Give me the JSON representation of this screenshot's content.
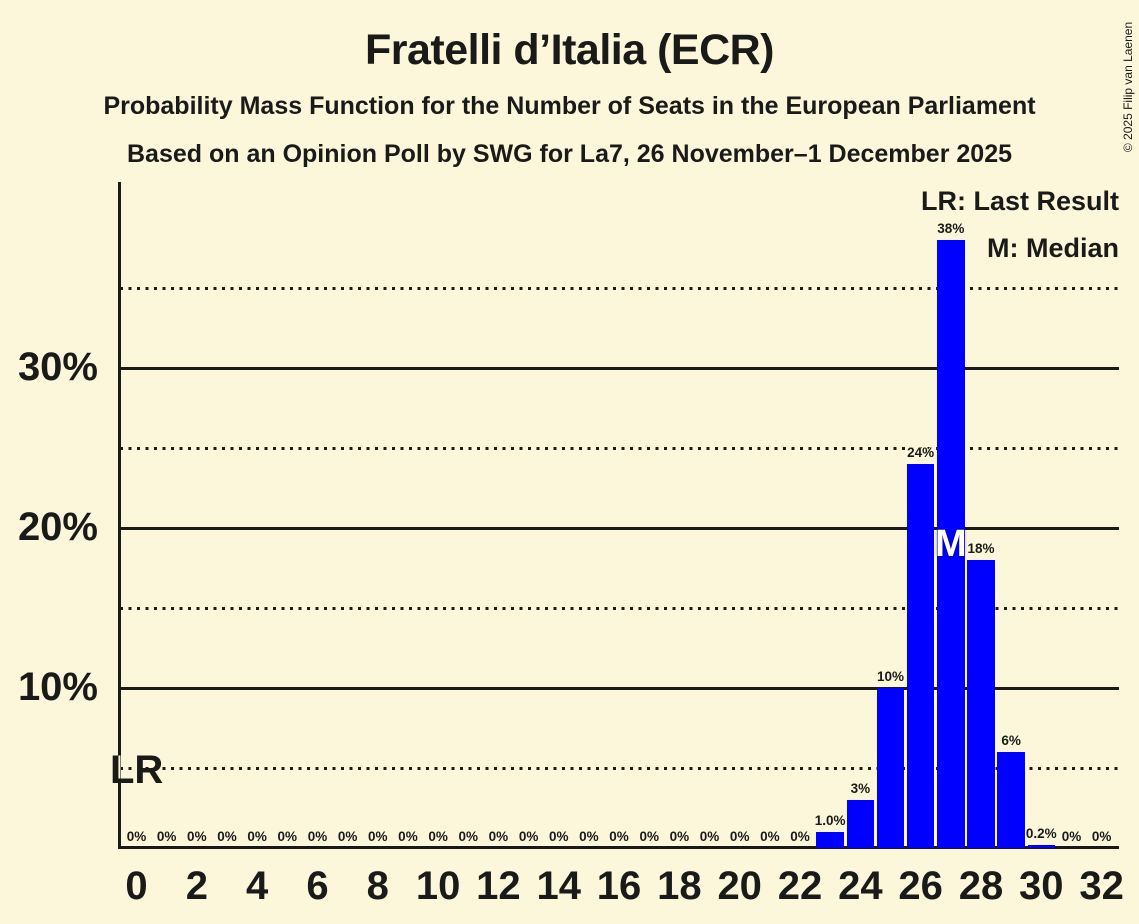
{
  "header": {
    "title": "Fratelli d’Italia (ECR)",
    "subtitle_line1": "Probability Mass Function for the Number of Seats in the European Parliament",
    "subtitle_line2": "Based on an Opinion Poll by SWG for La7, 26 November–1 December 2025"
  },
  "legend": {
    "last_result": "LR: Last Result",
    "median": "M: Median"
  },
  "annotations": {
    "last_result_label": "LR",
    "median_label": "M"
  },
  "copyright": "© 2025 Filip van Laenen",
  "colors": {
    "background": "#FCF7DB",
    "bar": "#0000FF",
    "text": "#1A1A19",
    "median_text": "#FFFFFF"
  },
  "chart_data": {
    "type": "bar",
    "title": "Fratelli d’Italia (ECR)",
    "seats": [
      0,
      1,
      2,
      3,
      4,
      5,
      6,
      7,
      8,
      9,
      10,
      11,
      12,
      13,
      14,
      15,
      16,
      17,
      18,
      19,
      20,
      21,
      22,
      23,
      24,
      25,
      26,
      27,
      28,
      29,
      30,
      31,
      32
    ],
    "values": [
      0,
      0,
      0,
      0,
      0,
      0,
      0,
      0,
      0,
      0,
      0,
      0,
      0,
      0,
      0,
      0,
      0,
      0,
      0,
      0,
      0,
      0,
      0,
      1.0,
      3,
      10,
      24,
      38,
      18,
      6,
      0.2,
      0,
      0
    ],
    "bar_labels": [
      "0%",
      "0%",
      "0%",
      "0%",
      "0%",
      "0%",
      "0%",
      "0%",
      "0%",
      "0%",
      "0%",
      "0%",
      "0%",
      "0%",
      "0%",
      "0%",
      "0%",
      "0%",
      "0%",
      "0%",
      "0%",
      "0%",
      "0%",
      "1.0%",
      "3%",
      "10%",
      "24%",
      "38%",
      "18%",
      "6%",
      "0.2%",
      "0%",
      "0%"
    ],
    "x_tick_labels": [
      "0",
      "2",
      "4",
      "6",
      "8",
      "10",
      "12",
      "14",
      "16",
      "18",
      "20",
      "22",
      "24",
      "26",
      "28",
      "30",
      "32"
    ],
    "y_ticks": [
      {
        "pct": 10,
        "label": "10%"
      },
      {
        "pct": 20,
        "label": "20%"
      },
      {
        "pct": 30,
        "label": "30%"
      }
    ],
    "gridlines": {
      "solid_pct": [
        10,
        20,
        30
      ],
      "dotted_pct": [
        5,
        15,
        25,
        35
      ]
    },
    "ylim_pct": [
      0,
      41.6
    ],
    "median_seat": 27,
    "legend_position": "top-right"
  }
}
